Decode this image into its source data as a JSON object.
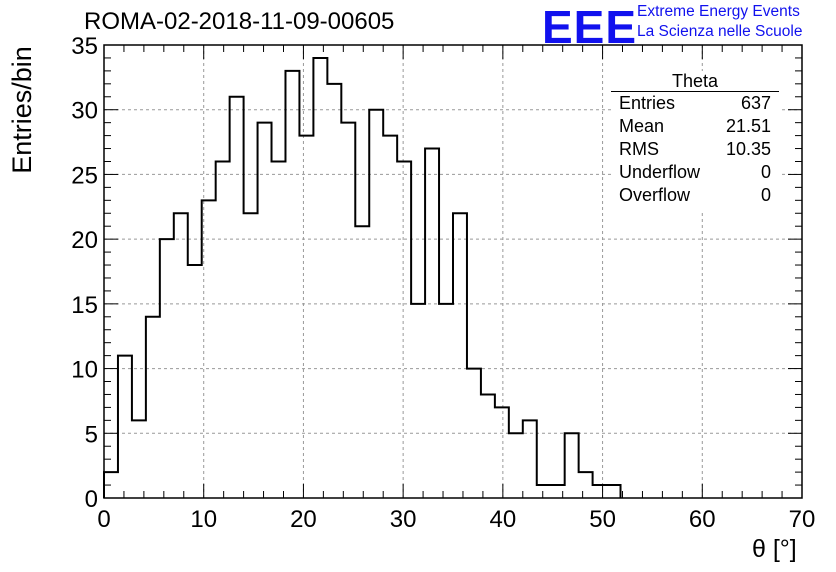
{
  "title": "ROMA-02-2018-11-09-00605",
  "logo": {
    "mark": "EEE",
    "line1": "Extreme Energy Events",
    "line2": "La Scienza nelle Scuole"
  },
  "stats_box": {
    "title": "Theta",
    "rows": [
      {
        "label": "Entries",
        "value": "637"
      },
      {
        "label": "Mean",
        "value": "21.51"
      },
      {
        "label": "RMS",
        "value": "10.35"
      },
      {
        "label": "Underflow",
        "value": "0"
      },
      {
        "label": "Overflow",
        "value": "0"
      }
    ]
  },
  "chart_data": {
    "type": "histogram",
    "title": "ROMA-02-2018-11-09-00605",
    "xlabel": "θ [°]",
    "ylabel": "Entries/bin",
    "xlim": [
      0,
      70
    ],
    "ylim": [
      0,
      35
    ],
    "grid": true,
    "bin_width": 1.4,
    "bin_edges_start": 0,
    "values": [
      2,
      11,
      6,
      14,
      20,
      22,
      18,
      23,
      26,
      31,
      22,
      29,
      26,
      33,
      28,
      34,
      32,
      29,
      21,
      30,
      28,
      26,
      15,
      27,
      15,
      22,
      10,
      8,
      7,
      5,
      6,
      1,
      1,
      5,
      2,
      1,
      1,
      0,
      0,
      0,
      0,
      0,
      0,
      0,
      0,
      0,
      0,
      0,
      0,
      0
    ],
    "x_ticks": [
      "0",
      "10",
      "20",
      "30",
      "40",
      "50",
      "60",
      "70"
    ],
    "y_ticks": [
      "0",
      "5",
      "10",
      "15",
      "20",
      "25",
      "30",
      "35"
    ]
  }
}
